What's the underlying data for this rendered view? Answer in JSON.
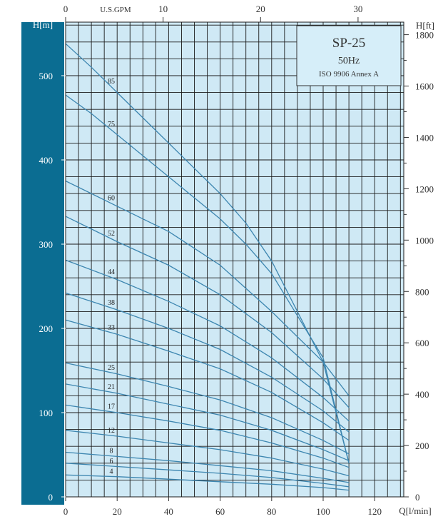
{
  "chart_data": {
    "type": "line",
    "title": "SP-25",
    "subtitle": "50Hz",
    "standard": "ISO 9906 Annex A",
    "x_axis": {
      "label": "Q[l/min]",
      "range": [
        0,
        130
      ],
      "ticks": [
        0,
        20,
        40,
        60,
        80,
        100,
        120
      ]
    },
    "x_axis_top": {
      "label": "U.S.GPM",
      "ticks": [
        0,
        10,
        20,
        30
      ]
    },
    "y_axis_left": {
      "label": "H[m]",
      "range": [
        0,
        560
      ],
      "ticks": [
        0,
        100,
        200,
        300,
        400,
        500
      ]
    },
    "y_axis_right": {
      "label": "H[ft]",
      "ticks": [
        0,
        200,
        400,
        600,
        800,
        1000,
        1200,
        1400,
        1600,
        1800
      ]
    },
    "grid": true,
    "colors": {
      "plot_bg": "#cfe9f5",
      "grid": "#1c1c1c",
      "curve": "#3d86b0",
      "left_band": "#0b6d92",
      "box_bg": "#d6eef9"
    },
    "series": [
      {
        "name": "85",
        "x": [
          0,
          10,
          20,
          30,
          40,
          50,
          60,
          70,
          80,
          90,
          100,
          110
        ],
        "y": [
          538,
          510,
          480,
          450,
          420,
          390,
          360,
          325,
          280,
          220,
          160,
          40
        ]
      },
      {
        "name": "75",
        "x": [
          0,
          10,
          20,
          30,
          40,
          50,
          60,
          70,
          80,
          90,
          100,
          110
        ],
        "y": [
          477,
          455,
          430,
          405,
          380,
          355,
          330,
          300,
          265,
          215,
          165,
          40
        ]
      },
      {
        "name": "60",
        "x": [
          0,
          20,
          40,
          60,
          80,
          100,
          110
        ],
        "y": [
          375,
          345,
          315,
          275,
          220,
          160,
          120
        ]
      },
      {
        "name": "52",
        "x": [
          0,
          20,
          40,
          60,
          80,
          100,
          110
        ],
        "y": [
          333,
          303,
          275,
          240,
          195,
          140,
          106
        ]
      },
      {
        "name": "44",
        "x": [
          0,
          20,
          40,
          60,
          80,
          100,
          110
        ],
        "y": [
          281,
          258,
          232,
          203,
          165,
          118,
          90
        ]
      },
      {
        "name": "38",
        "x": [
          0,
          20,
          40,
          60,
          80,
          100,
          110
        ],
        "y": [
          242,
          222,
          200,
          175,
          142,
          102,
          77
        ]
      },
      {
        "name": "33",
        "x": [
          0,
          20,
          40,
          60,
          80,
          100,
          110
        ],
        "y": [
          210,
          193,
          173,
          152,
          124,
          88,
          67
        ]
      },
      {
        "name": "25",
        "x": [
          0,
          20,
          40,
          60,
          80,
          100,
          110
        ],
        "y": [
          159,
          146,
          131,
          115,
          94,
          67,
          51
        ]
      },
      {
        "name": "21",
        "x": [
          0,
          20,
          40,
          60,
          80,
          100,
          110
        ],
        "y": [
          134,
          123,
          110,
          97,
          79,
          56,
          43
        ]
      },
      {
        "name": "17",
        "x": [
          0,
          20,
          40,
          60,
          80,
          100,
          110
        ],
        "y": [
          109,
          100,
          90,
          79,
          64,
          46,
          35
        ]
      },
      {
        "name": "12",
        "x": [
          0,
          20,
          40,
          60,
          80,
          100,
          110
        ],
        "y": [
          79,
          72,
          64,
          56,
          46,
          33,
          25
        ]
      },
      {
        "name": "8",
        "x": [
          0,
          20,
          40,
          60,
          80,
          100,
          110
        ],
        "y": [
          53,
          48,
          43,
          37,
          31,
          22,
          17
        ]
      },
      {
        "name": "6",
        "x": [
          0,
          20,
          40,
          60,
          80,
          100,
          110
        ],
        "y": [
          40,
          36,
          32,
          28,
          23,
          16,
          12
        ]
      },
      {
        "name": "4",
        "x": [
          0,
          20,
          40,
          60,
          80,
          100,
          110
        ],
        "y": [
          26,
          24,
          21,
          18,
          15,
          11,
          8
        ]
      }
    ]
  }
}
